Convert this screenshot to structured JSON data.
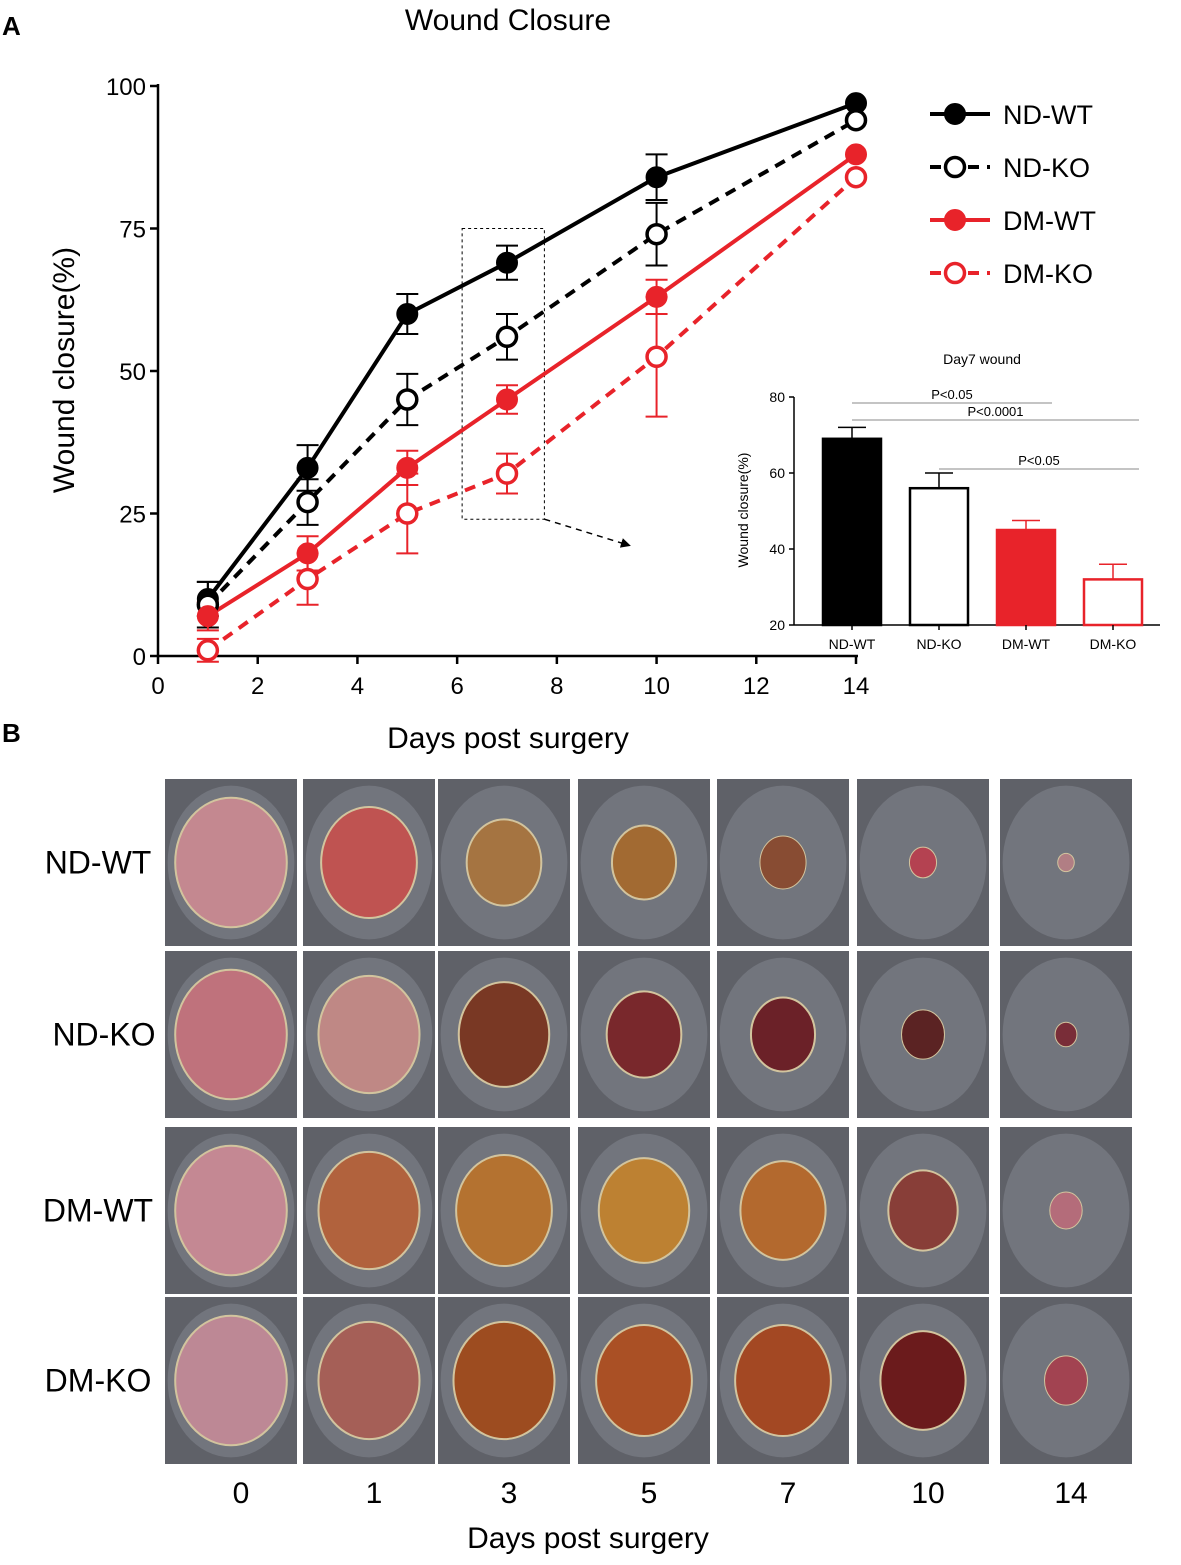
{
  "panel_a": {
    "label": "A",
    "chart_data": [
      {
        "type": "line",
        "title": "Wound Closure",
        "xlabel": "Days post surgery",
        "ylabel": "Wound closure(%)",
        "xlim": [
          0,
          14
        ],
        "ylim": [
          0,
          100
        ],
        "xticks": [
          "0",
          "2",
          "4",
          "6",
          "8",
          "10",
          "12",
          "14"
        ],
        "yticks": [
          "0",
          "25",
          "50",
          "75",
          "100"
        ],
        "x": [
          1,
          3,
          5,
          7,
          10,
          14
        ],
        "series": [
          {
            "name": "ND-WT",
            "color": "#000000",
            "filled": true,
            "dashed": false,
            "values": [
              10,
              33,
              60,
              69,
              84,
              97
            ],
            "error": [
              3,
              4,
              3.5,
              3,
              4,
              0
            ]
          },
          {
            "name": "ND-KO",
            "color": "#000000",
            "filled": false,
            "dashed": true,
            "values": [
              9,
              27,
              45,
              56,
              74,
              94
            ],
            "error": [
              4,
              4,
              4.5,
              4,
              5.5,
              0
            ]
          },
          {
            "name": "DM-WT",
            "color": "#e8232a",
            "filled": true,
            "dashed": false,
            "values": [
              7,
              18,
              33,
              45,
              63,
              88
            ],
            "error": [
              2.5,
              3,
              3,
              2.5,
              3,
              0
            ]
          },
          {
            "name": "DM-KO",
            "color": "#e8232a",
            "filled": false,
            "dashed": true,
            "values": [
              1,
              13.5,
              25,
              32,
              52.5,
              84
            ],
            "error": [
              2,
              4.5,
              7,
              3.5,
              10.5,
              0
            ]
          }
        ],
        "legend": "top-right",
        "highlight_box": {
          "x": [
            6.1,
            7.75
          ],
          "y": [
            24,
            75
          ]
        }
      },
      {
        "type": "bar",
        "title": "Day7 wound",
        "ylabel": "Wound closure(%)",
        "ylim": [
          20,
          80
        ],
        "yticks": [
          "20",
          "40",
          "60",
          "80"
        ],
        "categories": [
          "ND-WT",
          "ND-KO",
          "DM-WT",
          "DM-KO"
        ],
        "values": [
          69,
          56,
          45,
          32
        ],
        "error": [
          3,
          4,
          2.5,
          4
        ],
        "fills": [
          "#000000",
          "#ffffff",
          "#e8232a",
          "#ffffff"
        ],
        "strokes": [
          "#000000",
          "#000000",
          "#e8232a",
          "#e8232a"
        ],
        "significance": [
          {
            "from": 0,
            "to": 2,
            "label": "P<0.05"
          },
          {
            "from": 0,
            "to": 3,
            "label": "P<0.0001"
          },
          {
            "from": 1,
            "to": 3,
            "label": "P<0.05"
          }
        ]
      }
    ]
  },
  "panel_b": {
    "label": "B",
    "rows": [
      "ND-WT",
      "ND-KO",
      "DM-WT",
      "DM-KO"
    ],
    "days": [
      "0",
      "1",
      "3",
      "5",
      "7",
      "10",
      "14"
    ],
    "xlabel": "Days post surgery",
    "wound_sizes": [
      [
        1.0,
        0.85,
        0.65,
        0.55,
        0.38,
        0.2,
        0.1
      ],
      [
        1.0,
        0.9,
        0.8,
        0.65,
        0.55,
        0.35,
        0.15
      ],
      [
        1.0,
        0.9,
        0.85,
        0.8,
        0.75,
        0.6,
        0.25
      ],
      [
        1.0,
        0.9,
        0.9,
        0.85,
        0.85,
        0.75,
        0.35
      ]
    ],
    "wound_colors": [
      [
        "#c98a92",
        "#c4524f",
        "#a8743e",
        "#a56a2f",
        "#8a4a30",
        "#b8404f",
        "#b57f85"
      ],
      [
        "#c4727c",
        "#c48a86",
        "#7a3520",
        "#7a2428",
        "#6b1d24",
        "#5a1f1f",
        "#7a2a35"
      ],
      [
        "#c98a95",
        "#b5623a",
        "#b8722c",
        "#c2822e",
        "#b7692a",
        "#8a3c35",
        "#b86c7a"
      ],
      [
        "#c28a97",
        "#a85e55",
        "#a04a1c",
        "#ad4f21",
        "#a6461f",
        "#6b1717",
        "#a5414f"
      ]
    ]
  }
}
